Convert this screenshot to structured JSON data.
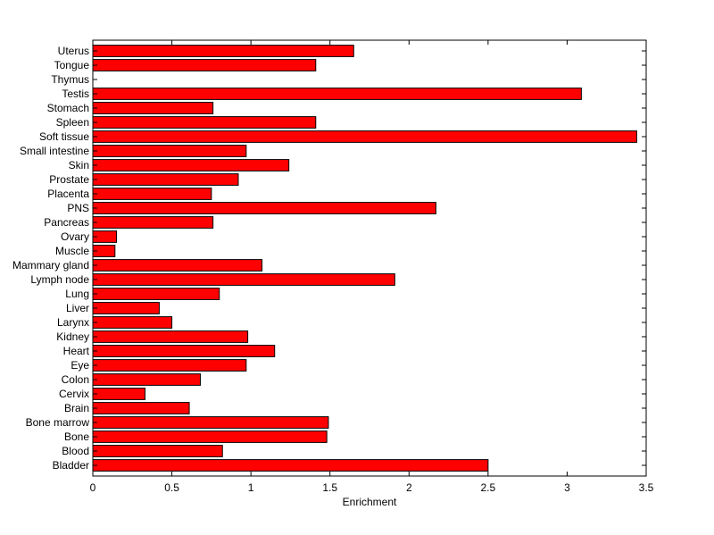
{
  "chart_data": {
    "type": "bar",
    "orientation": "horizontal",
    "categories": [
      "Uterus",
      "Tongue",
      "Thymus",
      "Testis",
      "Stomach",
      "Spleen",
      "Soft tissue",
      "Small intestine",
      "Skin",
      "Prostate",
      "Placenta",
      "PNS",
      "Pancreas",
      "Ovary",
      "Muscle",
      "Mammary gland",
      "Lymph node",
      "Lung",
      "Liver",
      "Larynx",
      "Kidney",
      "Heart",
      "Eye",
      "Colon",
      "Cervix",
      "Brain",
      "Bone marrow",
      "Bone",
      "Blood",
      "Bladder"
    ],
    "values": [
      1.65,
      1.41,
      0.0,
      3.09,
      0.76,
      1.41,
      3.44,
      0.97,
      1.24,
      0.92,
      0.75,
      2.17,
      0.76,
      0.15,
      0.14,
      1.07,
      1.91,
      0.8,
      0.42,
      0.5,
      0.98,
      1.15,
      0.97,
      0.68,
      0.33,
      0.61,
      1.49,
      1.48,
      0.82,
      2.5
    ],
    "xlabel": "Enrichment",
    "ylabel": "",
    "title": "",
    "xlim": [
      0,
      3.5
    ],
    "xticks": [
      0,
      0.5,
      1,
      1.5,
      2,
      2.5,
      3,
      3.5
    ],
    "xtick_labels": [
      "0",
      "0.5",
      "1",
      "1.5",
      "2",
      "2.5",
      "3",
      "3.5"
    ],
    "bar_color": "#ff0000",
    "edge_color": "#000000",
    "grid": false,
    "legend": "none"
  }
}
